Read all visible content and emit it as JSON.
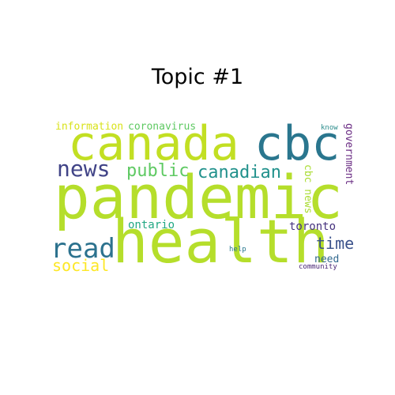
{
  "title": "Topic #1",
  "words": [
    {
      "id": "pandemic",
      "text": "pandemic",
      "color": "#b5de2b"
    },
    {
      "id": "health",
      "text": "health",
      "color": "#b5de2b"
    },
    {
      "id": "canada",
      "text": "canada",
      "color": "#c2df23"
    },
    {
      "id": "cbc",
      "text": "cbc",
      "color": "#2a768e"
    },
    {
      "id": "news",
      "text": "news",
      "color": "#414487"
    },
    {
      "id": "read",
      "text": "read",
      "color": "#2c728e"
    },
    {
      "id": "public",
      "text": "public",
      "color": "#5ec962"
    },
    {
      "id": "canadian",
      "text": "canadian",
      "color": "#21918c"
    },
    {
      "id": "social",
      "text": "social",
      "color": "#fde725"
    },
    {
      "id": "time",
      "text": "time",
      "color": "#3b528b"
    },
    {
      "id": "coronavirus",
      "text": "coronavirus",
      "color": "#5ec962"
    },
    {
      "id": "information",
      "text": "information",
      "color": "#d8e219"
    },
    {
      "id": "ontario",
      "text": "ontario",
      "color": "#22a884"
    },
    {
      "id": "toronto",
      "text": "toronto",
      "color": "#46327e"
    },
    {
      "id": "government",
      "text": "government",
      "color": "#6a2c83"
    },
    {
      "id": "cbc-news",
      "text": "cbc news",
      "color": "#aadc32"
    },
    {
      "id": "need",
      "text": "need",
      "color": "#31688e"
    },
    {
      "id": "help",
      "text": "help",
      "color": "#2a788e"
    },
    {
      "id": "know",
      "text": "know",
      "color": "#2c8d8c"
    },
    {
      "id": "community",
      "text": "community",
      "color": "#482475"
    }
  ]
}
